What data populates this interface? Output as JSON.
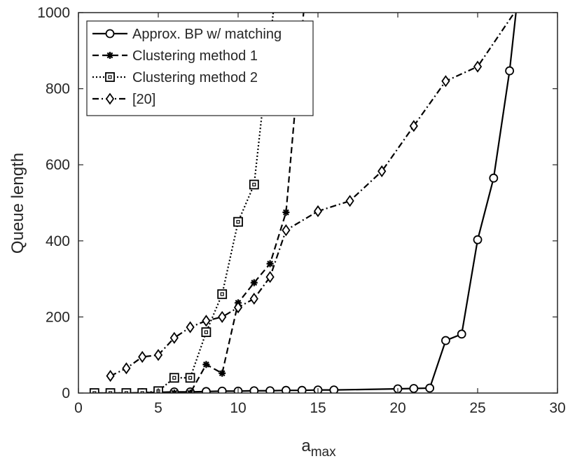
{
  "chart_data": {
    "type": "line",
    "xlabel": "a",
    "xlabel_sub": "max",
    "ylabel": "Queue length",
    "xlim": [
      0,
      30
    ],
    "ylim": [
      0,
      1000
    ],
    "xticks": [
      0,
      5,
      10,
      15,
      20,
      25,
      30
    ],
    "yticks": [
      0,
      200,
      400,
      600,
      800,
      1000
    ],
    "grid": false,
    "legend_position": "top-left",
    "series": [
      {
        "name": "Approx. BP w/ matching",
        "linestyle": "solid",
        "marker": "circle",
        "points": [
          [
            1,
            0
          ],
          [
            2,
            0
          ],
          [
            3,
            0
          ],
          [
            4,
            1
          ],
          [
            5,
            2
          ],
          [
            6,
            3
          ],
          [
            7,
            3
          ],
          [
            8,
            4
          ],
          [
            9,
            5
          ],
          [
            10,
            5
          ],
          [
            11,
            6
          ],
          [
            12,
            6
          ],
          [
            13,
            7
          ],
          [
            14,
            7
          ],
          [
            15,
            8
          ],
          [
            16,
            8
          ],
          [
            20,
            11
          ],
          [
            21,
            12
          ],
          [
            22,
            13
          ],
          [
            23,
            138
          ],
          [
            24,
            155
          ],
          [
            25,
            403
          ],
          [
            26,
            565
          ],
          [
            27,
            847
          ],
          [
            27.4,
            1000
          ]
        ]
      },
      {
        "name": "Clustering method 1",
        "linestyle": "dashed",
        "marker": "star",
        "points": [
          [
            1,
            0
          ],
          [
            2,
            0
          ],
          [
            3,
            0
          ],
          [
            4,
            0
          ],
          [
            5,
            0
          ],
          [
            6,
            0
          ],
          [
            7,
            0
          ],
          [
            8,
            75
          ],
          [
            9,
            52
          ],
          [
            10,
            237
          ],
          [
            11,
            290
          ],
          [
            12,
            340
          ],
          [
            13,
            475
          ],
          [
            14.1,
            1000
          ]
        ]
      },
      {
        "name": "Clustering method 2",
        "linestyle": "dotted",
        "marker": "square",
        "points": [
          [
            1,
            0
          ],
          [
            2,
            0
          ],
          [
            3,
            0
          ],
          [
            4,
            0
          ],
          [
            5,
            5
          ],
          [
            6,
            40
          ],
          [
            7,
            40
          ],
          [
            8,
            160
          ],
          [
            9,
            260
          ],
          [
            10,
            450
          ],
          [
            11,
            548
          ],
          [
            12.2,
            1000
          ]
        ]
      },
      {
        "name": "[20]",
        "linestyle": "dashdot",
        "marker": "diamond",
        "points": [
          [
            2,
            45
          ],
          [
            3,
            65
          ],
          [
            4,
            95
          ],
          [
            5,
            100
          ],
          [
            6,
            145
          ],
          [
            7,
            173
          ],
          [
            8,
            190
          ],
          [
            9,
            200
          ],
          [
            10,
            225
          ],
          [
            11,
            248
          ],
          [
            12,
            305
          ],
          [
            13,
            428
          ],
          [
            15,
            478
          ],
          [
            17,
            505
          ],
          [
            19,
            583
          ],
          [
            21,
            702
          ],
          [
            23,
            820
          ],
          [
            25,
            858
          ],
          [
            27.3,
            1000
          ]
        ]
      }
    ]
  }
}
